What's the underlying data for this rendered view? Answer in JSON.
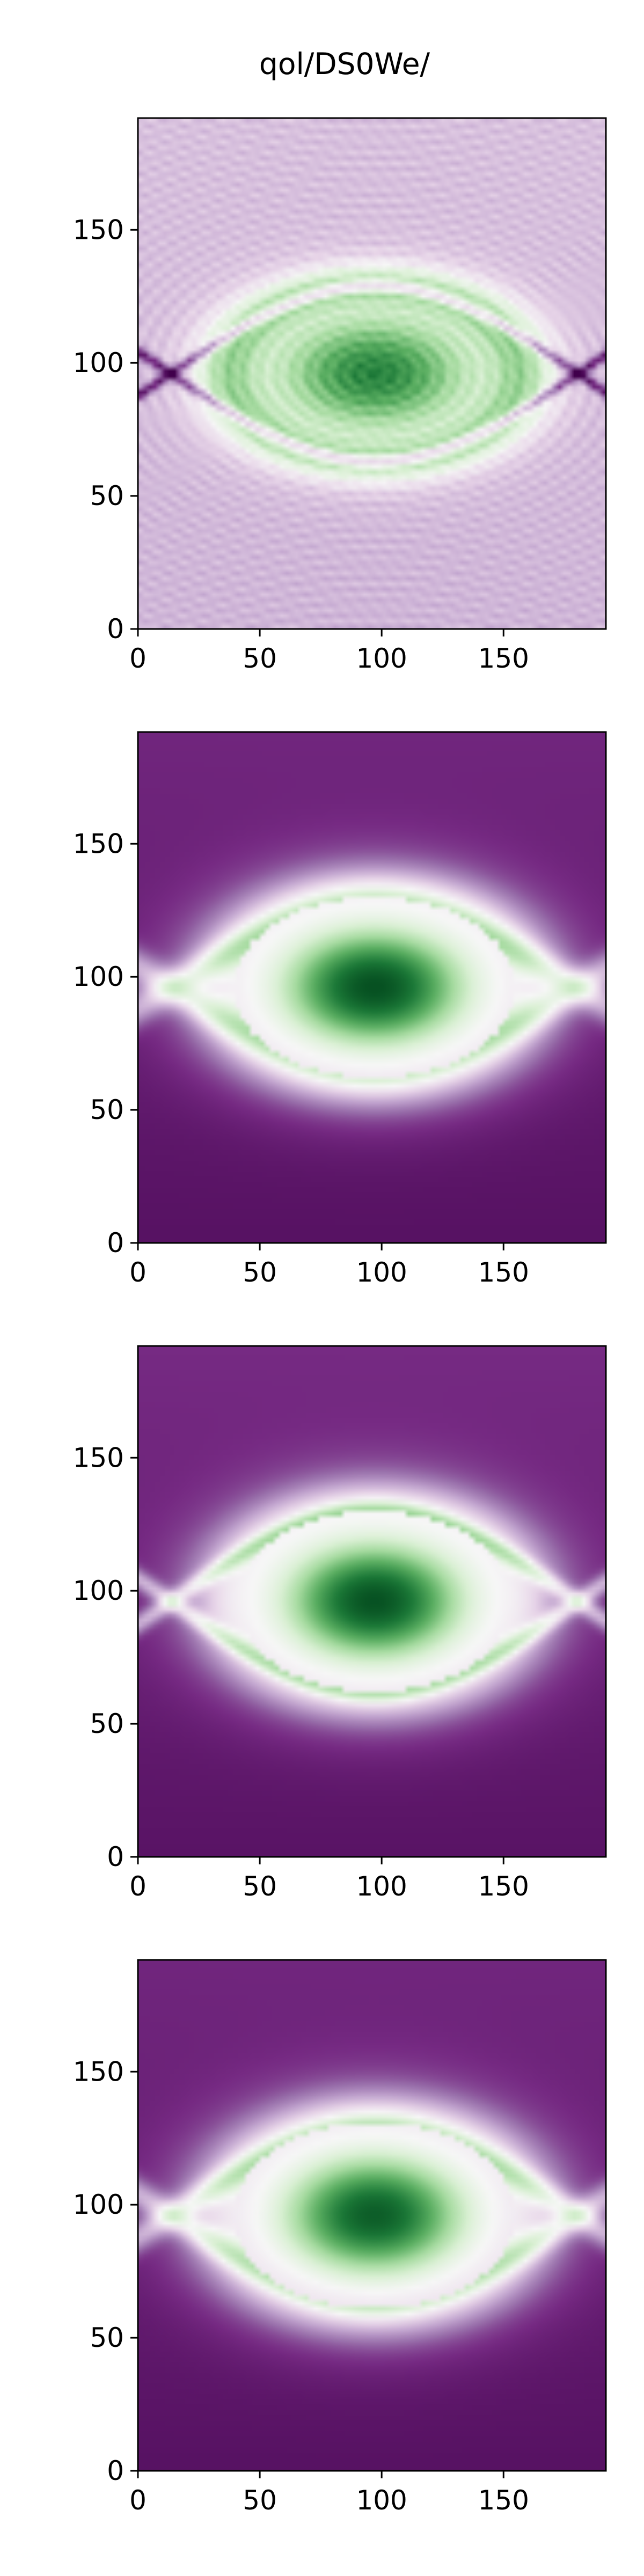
{
  "figure": {
    "title": "qol/DS0We/",
    "colormap": "PRGn",
    "background": "#ffffff"
  },
  "chart_data": [
    {
      "type": "heatmap",
      "title": "",
      "xlim": [
        0,
        192
      ],
      "ylim": [
        0,
        192
      ],
      "x_ticks": [
        0,
        50,
        100,
        150
      ],
      "y_ticks": [
        0,
        50,
        100,
        150
      ],
      "grid": false,
      "field": {
        "center": [
          97,
          96
        ],
        "semi_axes": [
          62,
          34
        ],
        "peak": 0.78,
        "base": -0.28,
        "low": -0.36,
        "rings": true,
        "curve_amp": 33,
        "curve_width": 2.2
      }
    },
    {
      "type": "heatmap",
      "title": "",
      "xlim": [
        0,
        192
      ],
      "ylim": [
        0,
        192
      ],
      "x_ticks": [
        0,
        50,
        100,
        150
      ],
      "y_ticks": [
        0,
        50,
        100,
        150
      ],
      "grid": false,
      "field": {
        "center": [
          97,
          96
        ],
        "semi_axes": [
          68,
          40
        ],
        "peak": 1.0,
        "base": -0.82,
        "low": -0.98,
        "rings": false,
        "curve_amp": 30,
        "curve_width": 7
      }
    },
    {
      "type": "heatmap",
      "title": "",
      "xlim": [
        0,
        192
      ],
      "ylim": [
        0,
        192
      ],
      "x_ticks": [
        0,
        50,
        100,
        150
      ],
      "y_ticks": [
        0,
        50,
        100,
        150
      ],
      "grid": false,
      "field": {
        "center": [
          97,
          96
        ],
        "semi_axes": [
          66,
          40
        ],
        "peak": 1.0,
        "base": -0.8,
        "low": -0.98,
        "rings": false,
        "curve_amp": 34,
        "curve_width": 4
      }
    },
    {
      "type": "heatmap",
      "title": "",
      "xlim": [
        0,
        192
      ],
      "ylim": [
        0,
        192
      ],
      "x_ticks": [
        0,
        50,
        100,
        150
      ],
      "y_ticks": [
        0,
        50,
        100,
        150
      ],
      "grid": false,
      "field": {
        "center": [
          97,
          96
        ],
        "semi_axes": [
          68,
          41
        ],
        "peak": 0.95,
        "base": -0.82,
        "low": -0.98,
        "rings": false,
        "curve_amp": 32,
        "curve_width": 6
      }
    }
  ]
}
